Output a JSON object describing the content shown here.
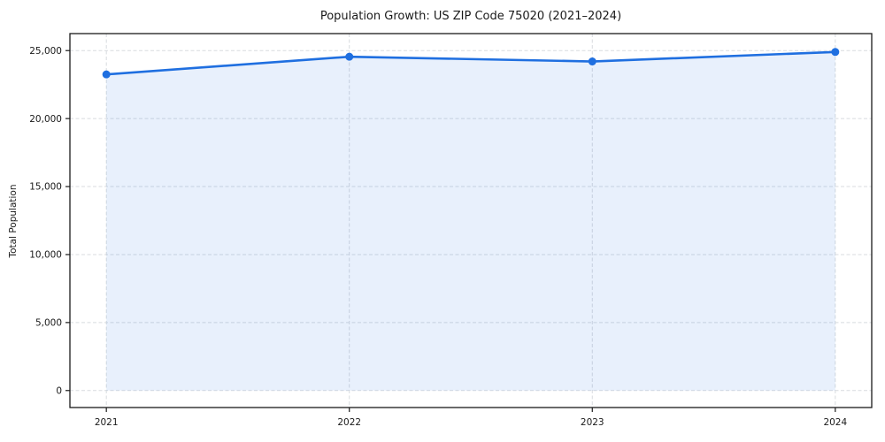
{
  "chart_data": {
    "type": "area",
    "title": "Population Growth: US ZIP Code 75020 (2021–2024)",
    "xlabel": "",
    "ylabel": "Total Population",
    "x": [
      2021,
      2022,
      2023,
      2024
    ],
    "xtick_labels": [
      "2021",
      "2022",
      "2023",
      "2024"
    ],
    "series": [
      {
        "name": "Total Population",
        "values": [
          23250,
          24550,
          24200,
          24900
        ]
      }
    ],
    "ylim": [
      -1250,
      26250
    ],
    "yticks": [
      0,
      5000,
      10000,
      15000,
      20000,
      25000
    ],
    "ytick_labels": [
      "0",
      "5,000",
      "10,000",
      "15,000",
      "20,000",
      "25,000"
    ],
    "grid": true,
    "grid_style": "dashed",
    "legend_position": "none",
    "colors": {
      "line": "#1f6fe0",
      "marker": "#1f6fe0",
      "fill": "#1f6fe0",
      "fill_opacity": 0.1,
      "grid": "#d8dbdf",
      "spine": "#1a1a1a",
      "tick": "#1a1a1a",
      "text": "#1a1a1a",
      "background": "#ffffff"
    }
  }
}
